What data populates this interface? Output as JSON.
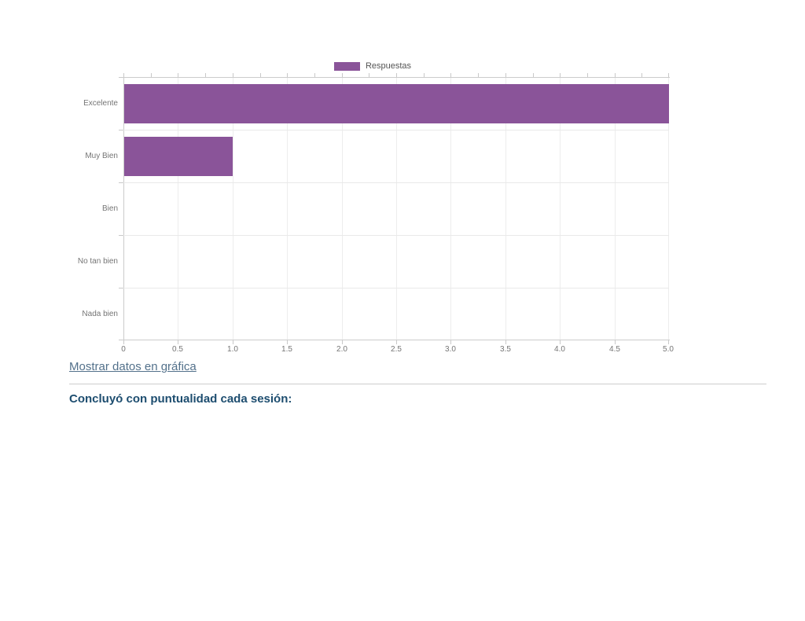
{
  "chart_data": {
    "type": "bar",
    "orientation": "horizontal",
    "legend": "Respuestas",
    "legend_position": "top-center",
    "categories": [
      "Excelente",
      "Muy Bien",
      "Bien",
      "No tan bien",
      "Nada bien"
    ],
    "values": [
      5,
      1,
      0,
      0,
      0
    ],
    "xlim": [
      0,
      5
    ],
    "x_tick_labels": [
      "0",
      "0.5",
      "1.0",
      "1.5",
      "2.0",
      "2.5",
      "3.0",
      "3.5",
      "4.0",
      "4.5",
      "5.0"
    ],
    "grid": true,
    "bar_color": "#8A5499"
  },
  "link": {
    "label": "Mostrar datos en gráfica"
  },
  "question": {
    "title": "Concluyó con puntualidad cada sesión:"
  },
  "colors": {
    "bar": "#8A5499",
    "link": "#53718B",
    "heading": "#1D4D6F",
    "axis_text": "#757575",
    "legend_text": "#555555",
    "gridline": "#ededed",
    "axis_line": "#cccccc",
    "divider": "#cccccc",
    "background": "#ffffff"
  }
}
